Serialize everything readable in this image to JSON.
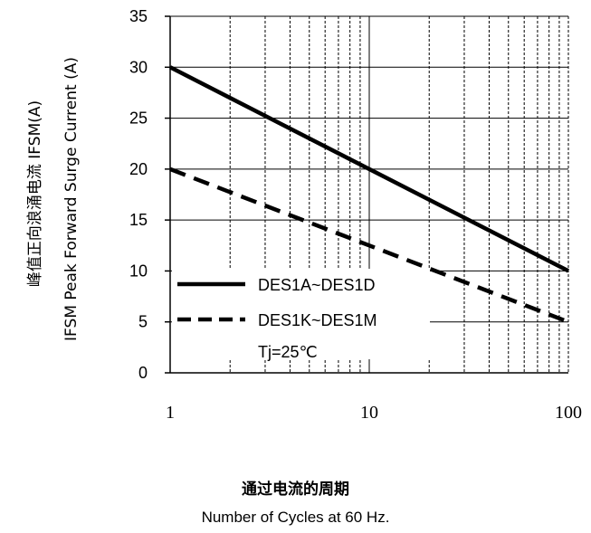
{
  "chart_data": {
    "type": "line",
    "x_scale": "log",
    "xlim": [
      1,
      100
    ],
    "ylim": [
      0,
      35
    ],
    "x_ticks": [
      "1",
      "10",
      "100"
    ],
    "y_ticks": [
      "0",
      "5",
      "10",
      "15",
      "20",
      "25",
      "30",
      "35"
    ],
    "grid": true,
    "ylabel_cn": "峰值正向浪涌电流 IFSM(A)",
    "ylabel_en": "IFSM  Peak Forward Surge Current (A)",
    "xlabel_cn": "通过电流的周期",
    "xlabel_en": "Number  of  Cycles at 60 Hz.",
    "legend_position": "bottom-left",
    "series": [
      {
        "name": "DES1A~DES1D",
        "style": "solid",
        "x": [
          1,
          100
        ],
        "y": [
          30,
          10
        ]
      },
      {
        "name": "DES1K~DES1M",
        "style": "dashed",
        "x": [
          1,
          100
        ],
        "y": [
          20,
          5
        ]
      }
    ],
    "annotation": "Tj=25℃"
  }
}
